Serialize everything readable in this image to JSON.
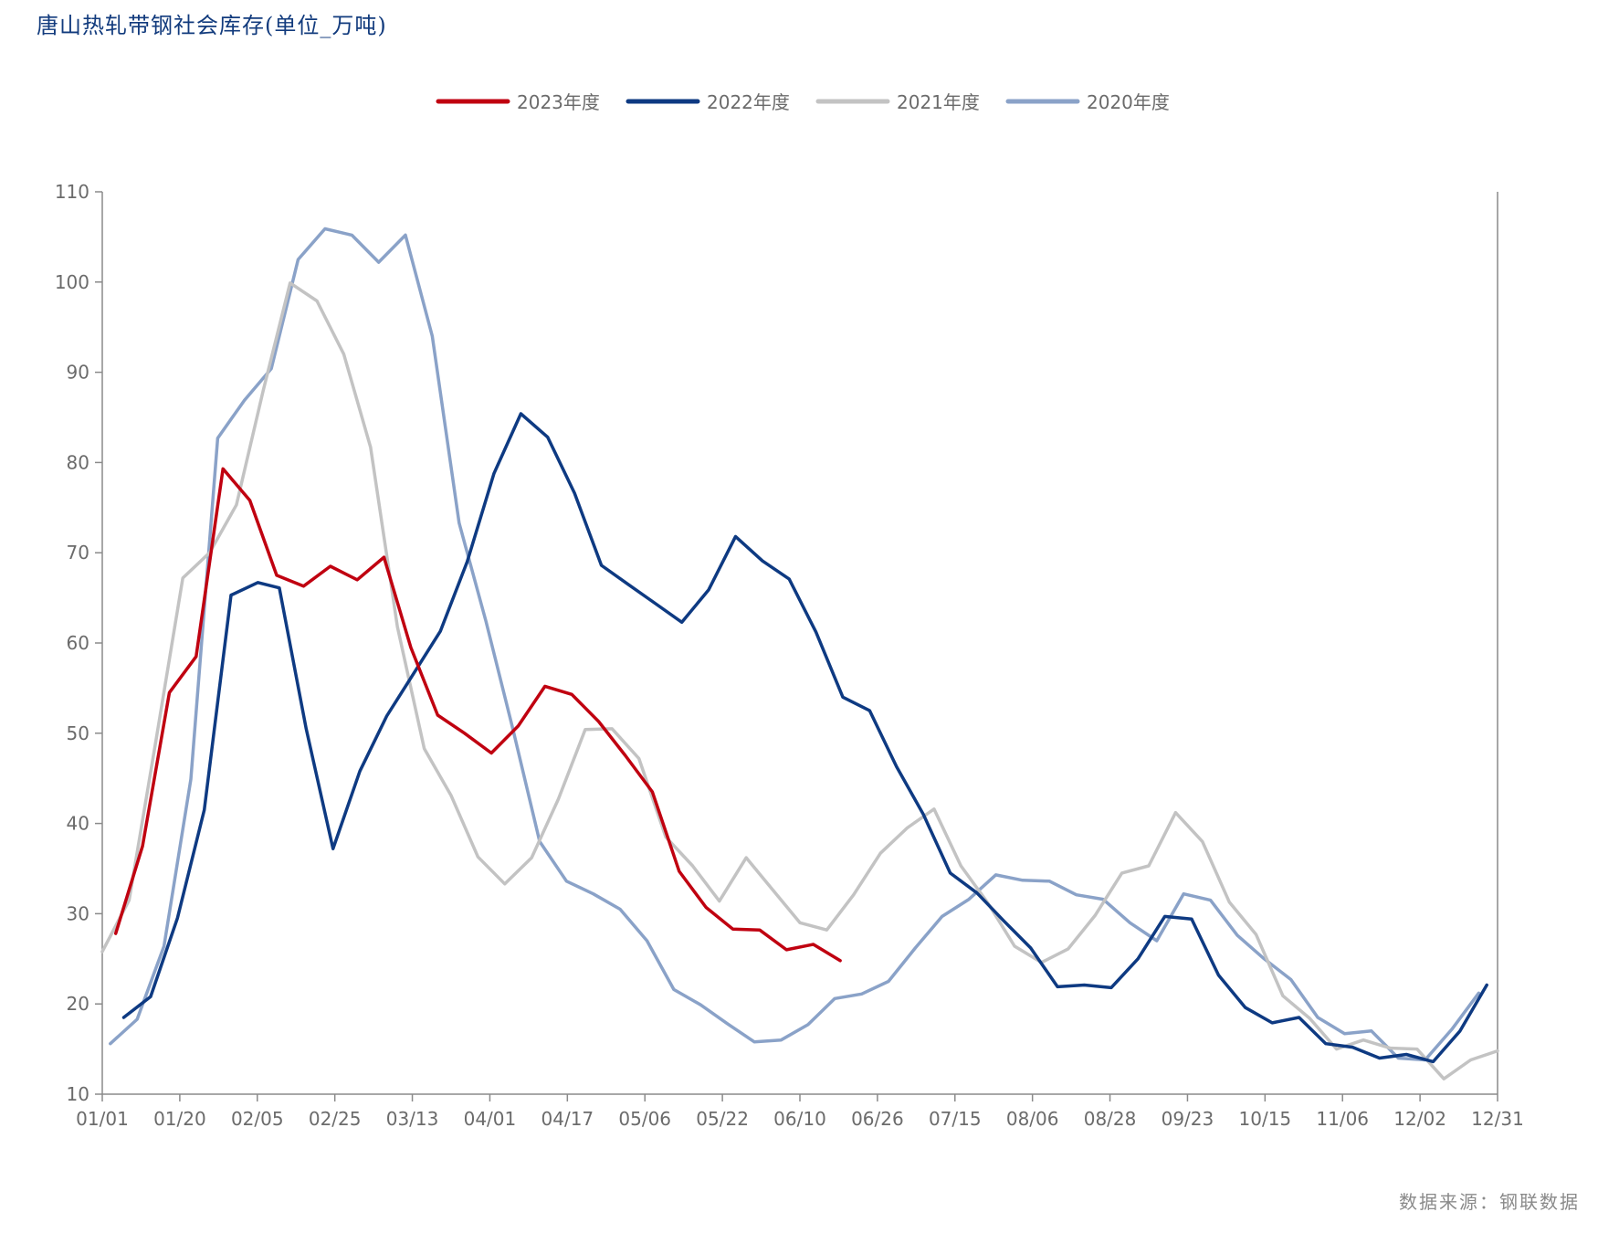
{
  "title": "唐山热轧带钢社会库存(单位_万吨)",
  "source": "数据来源：钢联数据",
  "chart_data": {
    "type": "line",
    "title": "唐山热轧带钢社会库存(单位_万吨)",
    "xlabel": "",
    "ylabel": "",
    "ylim": [
      10,
      110
    ],
    "yticks": [
      10,
      20,
      30,
      40,
      50,
      60,
      70,
      80,
      90,
      100,
      110
    ],
    "xticks": [
      "01/01",
      "01/20",
      "02/05",
      "02/25",
      "03/13",
      "04/01",
      "04/17",
      "05/06",
      "05/22",
      "06/10",
      "06/26",
      "07/15",
      "08/06",
      "08/28",
      "09/23",
      "10/15",
      "11/06",
      "12/02",
      "12/31"
    ],
    "legend_position": "top-center",
    "grid": false,
    "series": [
      {
        "name": "2023年度",
        "color": "#c00010",
        "points": [
          [
            0.5,
            27.8
          ],
          [
            1.5,
            37.5
          ],
          [
            2.5,
            54.5
          ],
          [
            3.5,
            58.5
          ],
          [
            4.5,
            79.3
          ],
          [
            5.5,
            75.8
          ],
          [
            6.5,
            67.5
          ],
          [
            7.5,
            66.3
          ],
          [
            8.5,
            68.5
          ],
          [
            9.5,
            67.0
          ],
          [
            10.5,
            69.5
          ],
          [
            11.5,
            59.5
          ],
          [
            12.5,
            52.0
          ],
          [
            13.5,
            50.0
          ],
          [
            14.5,
            47.8
          ],
          [
            15.5,
            50.8
          ],
          [
            16.5,
            55.2
          ],
          [
            17.5,
            54.3
          ],
          [
            18.5,
            51.3
          ],
          [
            19.5,
            47.5
          ],
          [
            20.5,
            43.5
          ],
          [
            21.5,
            34.7
          ],
          [
            22.5,
            30.7
          ],
          [
            23.5,
            28.3
          ],
          [
            24.5,
            28.2
          ],
          [
            25.5,
            26.0
          ],
          [
            26.5,
            26.6
          ],
          [
            27.5,
            24.8
          ]
        ]
      },
      {
        "name": "2022年度",
        "color": "#0e3a82",
        "points": [
          [
            0.8,
            18.5
          ],
          [
            1.8,
            20.8
          ],
          [
            2.8,
            29.5
          ],
          [
            3.8,
            41.5
          ],
          [
            4.8,
            65.3
          ],
          [
            5.8,
            66.7
          ],
          [
            6.6,
            66.1
          ],
          [
            7.6,
            50.5
          ],
          [
            8.6,
            37.2
          ],
          [
            9.6,
            45.8
          ],
          [
            10.6,
            51.9
          ],
          [
            11.6,
            56.6
          ],
          [
            12.6,
            61.3
          ],
          [
            13.6,
            69.0
          ],
          [
            14.6,
            78.8
          ],
          [
            15.6,
            85.4
          ],
          [
            16.6,
            82.8
          ],
          [
            17.6,
            76.6
          ],
          [
            18.6,
            68.6
          ],
          [
            19.6,
            66.5
          ],
          [
            20.6,
            64.4
          ],
          [
            21.6,
            62.3
          ],
          [
            22.6,
            65.9
          ],
          [
            23.6,
            71.8
          ],
          [
            24.6,
            69.1
          ],
          [
            25.6,
            67.1
          ],
          [
            26.6,
            61.2
          ],
          [
            27.6,
            54.0
          ],
          [
            28.6,
            52.5
          ],
          [
            29.6,
            46.3
          ],
          [
            30.6,
            41.0
          ],
          [
            31.6,
            34.5
          ],
          [
            32.6,
            32.3
          ],
          [
            33.6,
            29.2
          ],
          [
            34.6,
            26.2
          ],
          [
            35.6,
            21.9
          ],
          [
            36.6,
            22.1
          ],
          [
            37.6,
            21.8
          ],
          [
            38.6,
            25.0
          ],
          [
            39.6,
            29.7
          ],
          [
            40.6,
            29.4
          ],
          [
            41.6,
            23.2
          ],
          [
            42.6,
            19.6
          ],
          [
            43.6,
            17.9
          ],
          [
            44.6,
            18.5
          ],
          [
            45.6,
            15.6
          ],
          [
            46.6,
            15.2
          ],
          [
            47.6,
            14.0
          ],
          [
            48.6,
            14.4
          ],
          [
            49.6,
            13.6
          ],
          [
            50.6,
            17.0
          ],
          [
            51.6,
            22.1
          ]
        ]
      },
      {
        "name": "2021年度",
        "color": "#c3c3c3",
        "points": [
          [
            0.0,
            25.8
          ],
          [
            1.0,
            31.5
          ],
          [
            2.0,
            49.2
          ],
          [
            3.0,
            67.2
          ],
          [
            4.0,
            70.0
          ],
          [
            5.0,
            75.3
          ],
          [
            6.0,
            88.0
          ],
          [
            7.0,
            99.9
          ],
          [
            8.0,
            97.9
          ],
          [
            9.0,
            92.0
          ],
          [
            10.0,
            81.7
          ],
          [
            11.0,
            61.8
          ],
          [
            12.0,
            48.3
          ],
          [
            13.0,
            43.1
          ],
          [
            14.0,
            36.3
          ],
          [
            15.0,
            33.3
          ],
          [
            16.0,
            36.2
          ],
          [
            17.0,
            42.7
          ],
          [
            18.0,
            50.4
          ],
          [
            19.0,
            50.5
          ],
          [
            20.0,
            47.2
          ],
          [
            21.0,
            38.5
          ],
          [
            22.0,
            35.3
          ],
          [
            23.0,
            31.4
          ],
          [
            24.0,
            36.2
          ],
          [
            25.0,
            32.6
          ],
          [
            26.0,
            29.0
          ],
          [
            27.0,
            28.2
          ],
          [
            28.0,
            32.1
          ],
          [
            29.0,
            36.7
          ],
          [
            30.0,
            39.5
          ],
          [
            31.0,
            41.6
          ],
          [
            32.0,
            35.3
          ],
          [
            33.0,
            31.2
          ],
          [
            34.0,
            26.4
          ],
          [
            35.0,
            24.6
          ],
          [
            36.0,
            26.1
          ],
          [
            37.0,
            29.8
          ],
          [
            38.0,
            34.5
          ],
          [
            39.0,
            35.3
          ],
          [
            40.0,
            41.2
          ],
          [
            41.0,
            38.0
          ],
          [
            42.0,
            31.3
          ],
          [
            43.0,
            27.7
          ],
          [
            44.0,
            20.9
          ],
          [
            45.0,
            18.4
          ],
          [
            46.0,
            15.0
          ],
          [
            47.0,
            16.0
          ],
          [
            48.0,
            15.1
          ],
          [
            49.0,
            15.0
          ],
          [
            50.0,
            11.7
          ],
          [
            51.0,
            13.8
          ],
          [
            52.0,
            14.8
          ]
        ]
      },
      {
        "name": "2020年度",
        "color": "#8aa2c8",
        "points": [
          [
            0.3,
            15.6
          ],
          [
            1.3,
            18.3
          ],
          [
            2.3,
            26.4
          ],
          [
            3.3,
            44.9
          ],
          [
            4.3,
            82.7
          ],
          [
            5.3,
            86.9
          ],
          [
            6.3,
            90.4
          ],
          [
            7.3,
            102.5
          ],
          [
            8.3,
            105.9
          ],
          [
            9.3,
            105.2
          ],
          [
            10.3,
            102.2
          ],
          [
            11.3,
            105.2
          ],
          [
            12.3,
            94.0
          ],
          [
            13.3,
            73.3
          ],
          [
            14.3,
            62.4
          ],
          [
            15.3,
            50.5
          ],
          [
            16.3,
            38.0
          ],
          [
            17.3,
            33.6
          ],
          [
            18.3,
            32.2
          ],
          [
            19.3,
            30.5
          ],
          [
            20.3,
            27.0
          ],
          [
            21.3,
            21.6
          ],
          [
            22.3,
            19.9
          ],
          [
            23.3,
            17.8
          ],
          [
            24.3,
            15.8
          ],
          [
            25.3,
            16.0
          ],
          [
            26.3,
            17.7
          ],
          [
            27.3,
            20.6
          ],
          [
            28.3,
            21.1
          ],
          [
            29.3,
            22.5
          ],
          [
            30.3,
            26.2
          ],
          [
            31.3,
            29.7
          ],
          [
            32.3,
            31.6
          ],
          [
            33.3,
            34.3
          ],
          [
            34.3,
            33.7
          ],
          [
            35.3,
            33.6
          ],
          [
            36.3,
            32.1
          ],
          [
            37.3,
            31.6
          ],
          [
            38.3,
            29.0
          ],
          [
            39.3,
            27.0
          ],
          [
            40.3,
            32.2
          ],
          [
            41.3,
            31.5
          ],
          [
            42.3,
            27.6
          ],
          [
            43.3,
            25.0
          ],
          [
            44.3,
            22.7
          ],
          [
            45.3,
            18.5
          ],
          [
            46.3,
            16.7
          ],
          [
            47.3,
            17.0
          ],
          [
            48.3,
            14.0
          ],
          [
            49.3,
            13.8
          ],
          [
            50.3,
            17.2
          ],
          [
            51.3,
            21.2
          ]
        ]
      }
    ]
  }
}
